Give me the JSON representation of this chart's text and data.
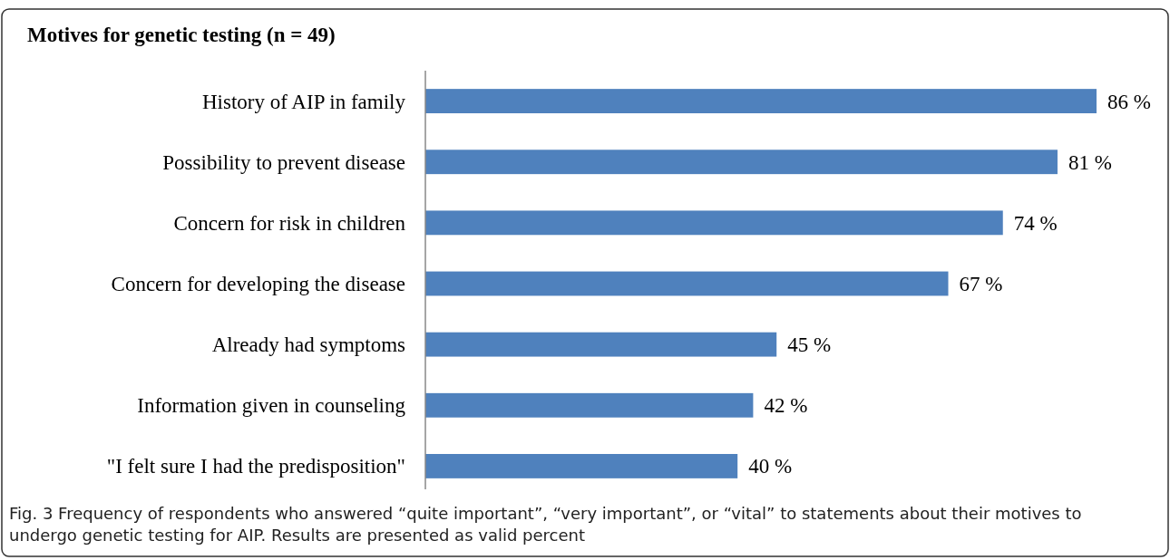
{
  "chart_data": {
    "type": "bar",
    "orientation": "horizontal",
    "title": "Motives for genetic testing  (n =  49)",
    "categories": [
      "History of AIP in family",
      "Possibility to prevent disease",
      "Concern for risk in children",
      "Concern for developing the disease",
      "Already had symptoms",
      "Information given in counseling",
      "\"I felt sure I had the predisposition\""
    ],
    "values": [
      86,
      81,
      74,
      67,
      45,
      42,
      40
    ],
    "value_labels": [
      "86 %",
      "81 %",
      "74 %",
      "67 %",
      "45 %",
      "42 %",
      "40 %"
    ],
    "color": "#4f81bd",
    "annotations": [
      "Fig. 3 Frequency of respondents who answered “quite important”, “very important”, or “vital” to statements about their motives to undergo genetic testing for AIP. Results are presented as valid percent"
    ]
  }
}
